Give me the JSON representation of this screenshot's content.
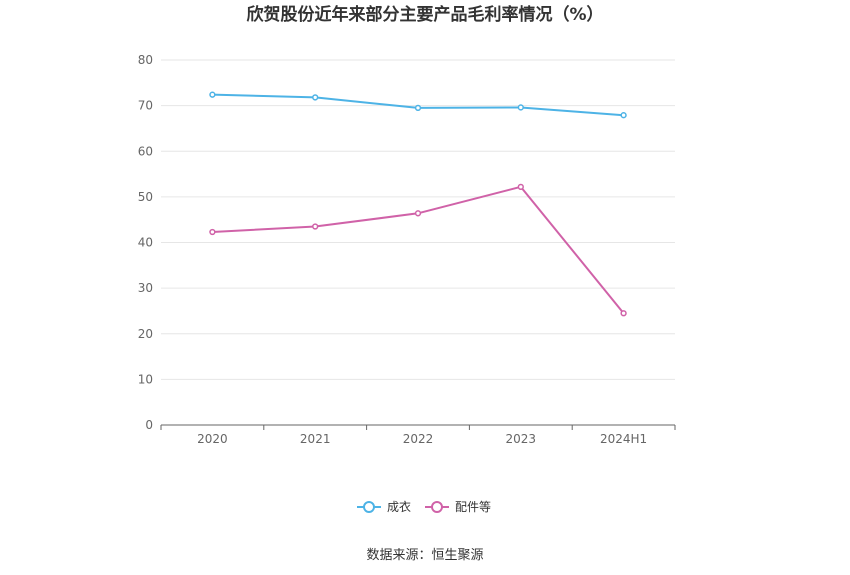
{
  "chart_data": {
    "type": "line",
    "title": "欣贺股份近年来部分主要产品毛利率情况（%）",
    "categories": [
      "2020",
      "2021",
      "2022",
      "2023",
      "2024H1"
    ],
    "series": [
      {
        "name": "成衣",
        "color": "#4db3e6",
        "values": [
          72.4,
          71.8,
          69.5,
          69.6,
          67.9
        ]
      },
      {
        "name": "配件等",
        "color": "#d062a8",
        "values": [
          42.3,
          43.5,
          46.4,
          52.2,
          24.5
        ]
      }
    ],
    "ylim": [
      0,
      80
    ],
    "yticks": [
      0,
      10,
      20,
      30,
      40,
      50,
      60,
      70,
      80
    ],
    "grid": true,
    "legend_position": "bottom-center",
    "xlabel": "",
    "ylabel": ""
  },
  "footer": {
    "source_text": "数据来源：恒生聚源"
  }
}
